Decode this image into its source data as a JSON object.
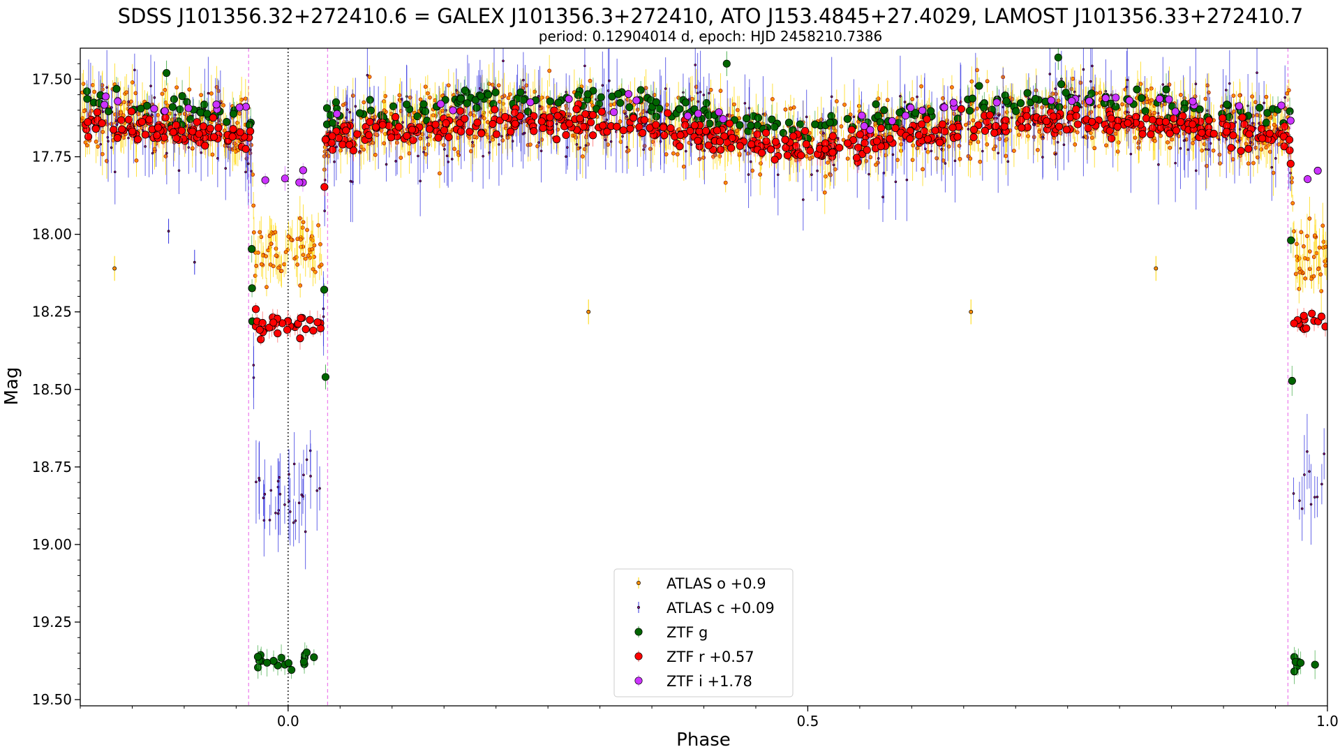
{
  "chart_data": {
    "type": "scatter",
    "title": "SDSS J101356.32+272410.6 = GALEX J101356.3+272410, ATO J153.4845+27.4029, LAMOST J101356.33+272410.7",
    "subtitle": "period: 0.12904014 d, epoch: HJD 2458210.7386",
    "xlabel": "Phase",
    "ylabel": "Mag",
    "xlim": [
      -0.2,
      1.0
    ],
    "ylim": [
      19.52,
      17.4
    ],
    "y_inverted": true,
    "x_ticks": [
      0.0,
      0.5,
      1.0
    ],
    "x_tick_labels": [
      "0.0",
      "0.5",
      "1.0"
    ],
    "y_ticks": [
      17.5,
      17.75,
      18.0,
      18.25,
      18.5,
      18.75,
      19.0,
      19.25,
      19.5
    ],
    "y_tick_labels": [
      "17.50",
      "17.75",
      "18.00",
      "18.25",
      "18.50",
      "18.75",
      "19.00",
      "19.25",
      "19.50"
    ],
    "grid": false,
    "legend_position": "lower-center",
    "vertical_lines": [
      {
        "x": -0.038,
        "style": "dashed",
        "color": "#ee82ee"
      },
      {
        "x": 0.0,
        "style": "dotted",
        "color": "#000000"
      },
      {
        "x": 0.038,
        "style": "dashed",
        "color": "#ee82ee"
      },
      {
        "x": 0.962,
        "style": "dashed",
        "color": "#ee82ee"
      }
    ],
    "eclipse": {
      "half_width": 0.036
    },
    "series": [
      {
        "name": "ATLAS o +0.9",
        "marker": "small-circle",
        "color": "#ff8c00",
        "errorbar_color": "#ffd700",
        "baseline_mag": 17.66,
        "eclipse_mag": 18.06,
        "scatter": 0.09,
        "count": 1400
      },
      {
        "name": "ATLAS c +0.09",
        "marker": "tiny-circle",
        "color": "#800080",
        "errorbar_color": "#3030e0",
        "baseline_mag": 17.66,
        "eclipse_mag": 18.85,
        "scatter": 0.12,
        "count": 450
      },
      {
        "name": "ZTF g",
        "marker": "circle",
        "color": "#006400",
        "errorbar_color": "#4caf50",
        "baseline_mag": 17.61,
        "eclipse_mag": 19.38,
        "scatter": 0.035,
        "count": 300
      },
      {
        "name": "ZTF r +0.57",
        "marker": "circle",
        "color": "#ff0000",
        "errorbar_color": "#ff6666",
        "baseline_mag": 17.68,
        "eclipse_mag": 18.29,
        "scatter": 0.035,
        "count": 650
      },
      {
        "name": "ZTF i +1.78",
        "marker": "circle",
        "color": "#cc33ff",
        "errorbar_color": "#dd88ff",
        "baseline_mag": 17.6,
        "eclipse_mag": 17.82,
        "scatter": 0.03,
        "count": 55
      }
    ],
    "outliers": [
      {
        "series": "ATLAS o +0.9",
        "x": -0.167,
        "y": 18.11
      },
      {
        "series": "ATLAS o +0.9",
        "x": 0.289,
        "y": 18.25
      },
      {
        "series": "ATLAS o +0.9",
        "x": 0.657,
        "y": 18.25
      },
      {
        "series": "ATLAS o +0.9",
        "x": 0.835,
        "y": 18.11
      },
      {
        "series": "ATLAS c +0.09",
        "x": -0.115,
        "y": 17.99
      },
      {
        "series": "ATLAS c +0.09",
        "x": -0.09,
        "y": 18.09
      },
      {
        "series": "ZTF g",
        "x": 0.422,
        "y": 17.45
      },
      {
        "series": "ZTF g",
        "x": 0.741,
        "y": 17.43
      },
      {
        "series": "ZTF g",
        "x": -0.117,
        "y": 17.48
      },
      {
        "series": "ZTF g",
        "x": 0.036,
        "y": 18.46
      },
      {
        "series": "ZTF i +1.78",
        "x": -0.003,
        "y": 17.82
      }
    ]
  }
}
